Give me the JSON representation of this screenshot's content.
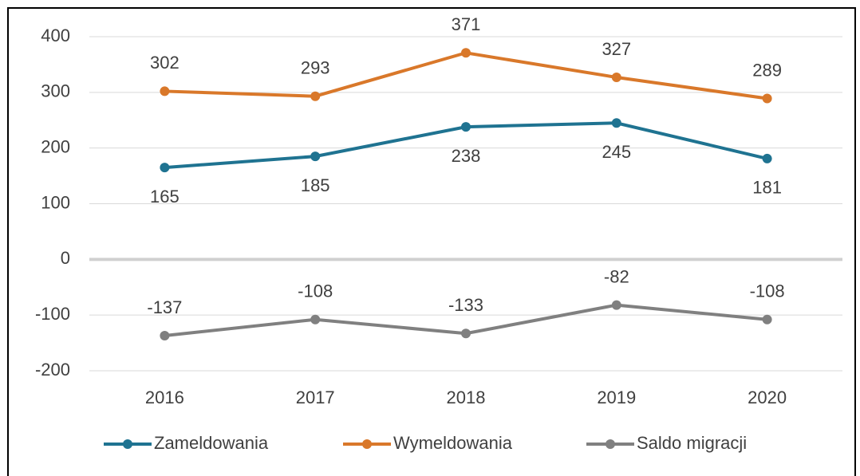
{
  "chart_data": {
    "type": "line",
    "categories": [
      "2016",
      "2017",
      "2018",
      "2019",
      "2020"
    ],
    "series": [
      {
        "name": "Zameldowania",
        "color": "#1f7391",
        "values": [
          165,
          185,
          238,
          245,
          181
        ]
      },
      {
        "name": "Wymeldowania",
        "color": "#d9782a",
        "values": [
          302,
          293,
          371,
          327,
          289
        ]
      },
      {
        "name": "Saldo migracji",
        "color": "#808080",
        "values": [
          -137,
          -108,
          -133,
          -82,
          -108
        ]
      }
    ],
    "ylim": [
      -200,
      400
    ],
    "yticks": [
      -200,
      -100,
      0,
      100,
      200,
      300,
      400
    ],
    "grid": true,
    "legend": "bottom"
  }
}
